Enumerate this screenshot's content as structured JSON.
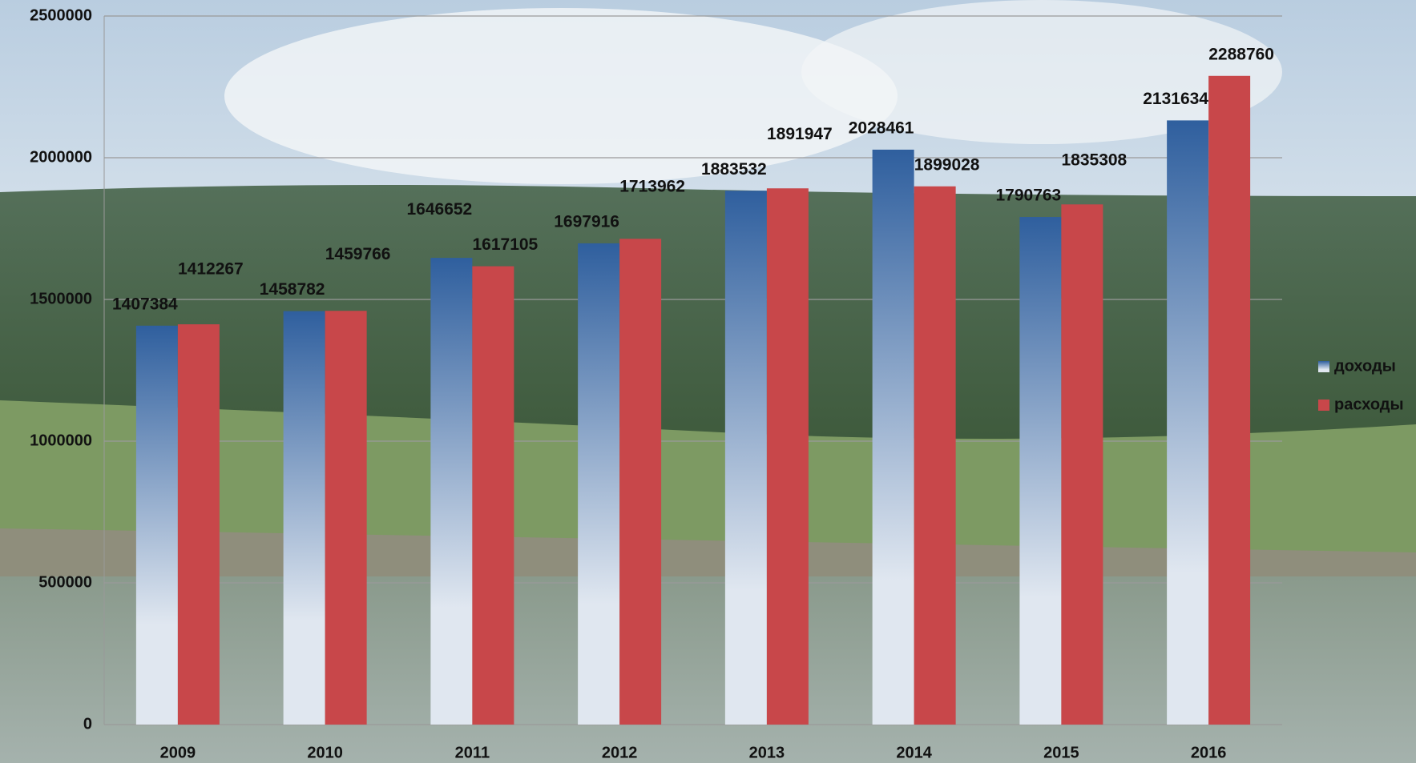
{
  "chart_data": {
    "type": "bar",
    "categories": [
      "2009",
      "2010",
      "2011",
      "2012",
      "2013",
      "2014",
      "2015",
      "2016"
    ],
    "series": [
      {
        "name": "доходы",
        "color": "#2f5f9e",
        "values": [
          1407384,
          1458782,
          1646652,
          1697916,
          1883532,
          2028461,
          1790763,
          2131634
        ]
      },
      {
        "name": "расходы",
        "color": "#c8474a",
        "values": [
          1412267,
          1459766,
          1617105,
          1713962,
          1891947,
          1899028,
          1835308,
          2288760
        ]
      }
    ],
    "ylim": [
      0,
      2500000
    ],
    "yticks": [
      0,
      500000,
      1000000,
      1500000,
      2000000,
      2500000
    ],
    "grid": true,
    "legend": "right"
  }
}
